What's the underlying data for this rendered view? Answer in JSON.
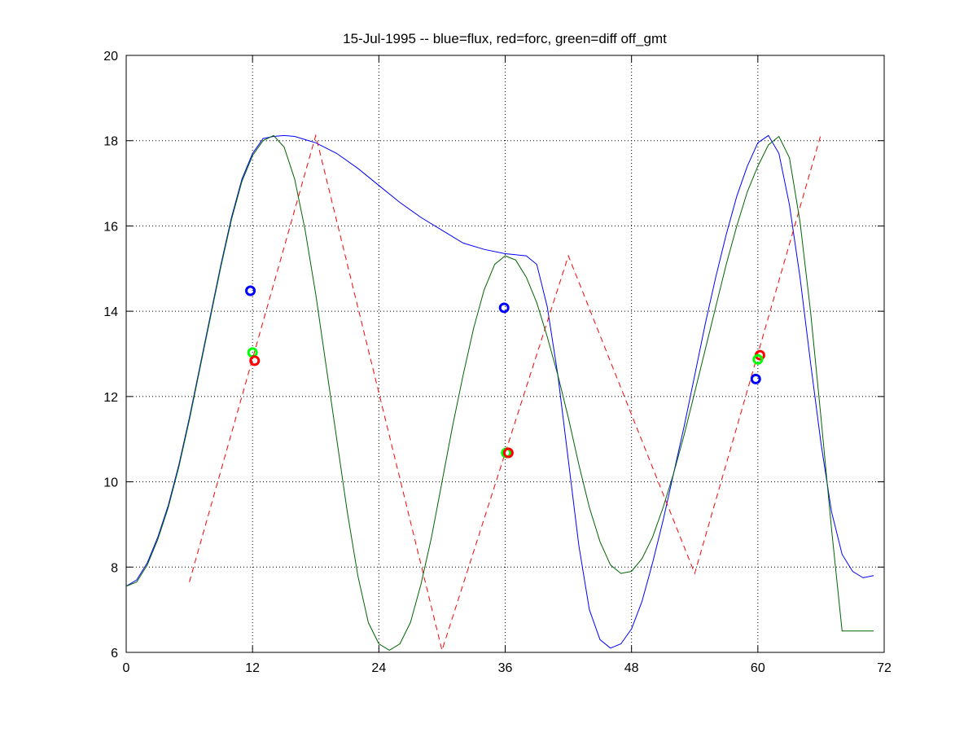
{
  "chart_data": {
    "type": "line",
    "title": "15-Jul-1995 -- blue=flux, red=forc, green=diff off_gmt",
    "xlabel": "",
    "ylabel": "",
    "xlim": [
      0,
      72
    ],
    "ylim": [
      6,
      20
    ],
    "xticks": [
      0,
      12,
      24,
      36,
      48,
      60,
      72
    ],
    "yticks": [
      6,
      8,
      10,
      12,
      14,
      16,
      18,
      20
    ],
    "xtick_labels": [
      "0",
      "12",
      "24",
      "36",
      "48",
      "60",
      "72"
    ],
    "ytick_labels": [
      "6",
      "8",
      "10",
      "12",
      "14",
      "16",
      "18",
      "20"
    ],
    "grid": true,
    "legend": "none",
    "series": [
      {
        "color": "#0000ff",
        "style": "solid",
        "x": [
          0,
          1,
          2,
          3,
          4,
          5,
          6,
          7,
          8,
          9,
          10,
          11,
          12,
          13,
          14,
          15,
          16,
          18,
          20,
          22,
          24,
          26,
          28,
          30,
          32,
          34,
          36,
          38,
          39,
          40,
          41,
          42,
          43,
          44,
          45,
          46,
          47,
          48,
          49,
          50,
          51,
          52,
          53,
          54,
          55,
          56,
          57,
          58,
          59,
          60,
          61,
          62,
          63,
          64,
          65,
          66,
          67,
          68,
          69,
          70,
          71
        ],
        "y": [
          7.55,
          7.7,
          8.1,
          8.7,
          9.45,
          10.4,
          11.5,
          12.7,
          13.9,
          15.1,
          16.2,
          17.1,
          17.7,
          18.05,
          18.1,
          18.12,
          18.1,
          17.95,
          17.7,
          17.35,
          16.95,
          16.55,
          16.2,
          15.9,
          15.6,
          15.45,
          15.35,
          15.3,
          15.1,
          14.1,
          12.5,
          10.5,
          8.5,
          7.0,
          6.3,
          6.1,
          6.2,
          6.55,
          7.2,
          8.1,
          9.1,
          10.2,
          11.3,
          12.5,
          13.7,
          14.8,
          15.8,
          16.7,
          17.4,
          17.95,
          18.12,
          17.7,
          16.5,
          14.8,
          12.8,
          10.9,
          9.3,
          8.3,
          7.9,
          7.75,
          7.8
        ]
      },
      {
        "color": "#ff0000",
        "style": "dashed",
        "x": [
          6,
          18,
          30,
          42,
          54,
          66
        ],
        "y": [
          7.65,
          18.12,
          6.05,
          15.3,
          7.85,
          18.15
        ]
      },
      {
        "color": "#006400",
        "style": "solid",
        "x": [
          0,
          1,
          2,
          3,
          4,
          5,
          6,
          7,
          8,
          9,
          10,
          11,
          12,
          13,
          14,
          15,
          16,
          17,
          18,
          19,
          20,
          21,
          22,
          23,
          24,
          25,
          26,
          27,
          28,
          29,
          30,
          31,
          32,
          33,
          34,
          35,
          36,
          37,
          38,
          39,
          40,
          41,
          42,
          43,
          44,
          45,
          46,
          47,
          48,
          49,
          50,
          51,
          52,
          53,
          54,
          55,
          56,
          57,
          58,
          59,
          60,
          61,
          62,
          63,
          64,
          65,
          66,
          67,
          68,
          69,
          70,
          71
        ],
        "y": [
          7.55,
          7.65,
          8.05,
          8.65,
          9.4,
          10.35,
          11.45,
          12.65,
          13.85,
          15.05,
          16.15,
          17.05,
          17.65,
          18.0,
          18.12,
          17.85,
          17.1,
          15.9,
          14.4,
          12.7,
          11.0,
          9.3,
          7.8,
          6.7,
          6.2,
          6.05,
          6.2,
          6.7,
          7.6,
          8.7,
          10.0,
          11.3,
          12.5,
          13.6,
          14.5,
          15.1,
          15.3,
          15.2,
          14.8,
          14.2,
          13.4,
          12.5,
          11.5,
          10.4,
          9.4,
          8.6,
          8.05,
          7.85,
          7.9,
          8.2,
          8.7,
          9.4,
          10.2,
          11.1,
          12.1,
          13.1,
          14.1,
          15.1,
          16.0,
          16.8,
          17.4,
          17.9,
          18.1,
          17.6,
          16.1,
          14.0,
          11.5,
          8.9,
          6.5,
          6.5,
          6.5,
          6.5
        ],
        "x_note_unused": null
      }
    ],
    "markers": [
      {
        "color": "#0000ff",
        "x": 11.8,
        "y": 14.48
      },
      {
        "color": "#00ff00",
        "x": 12.0,
        "y": 13.03
      },
      {
        "color": "#ff0000",
        "x": 12.2,
        "y": 12.84
      },
      {
        "color": "#0000ff",
        "x": 35.9,
        "y": 14.08
      },
      {
        "color": "#00ff00",
        "x": 36.1,
        "y": 10.68
      },
      {
        "color": "#ff0000",
        "x": 36.3,
        "y": 10.68
      },
      {
        "color": "#0000ff",
        "x": 59.8,
        "y": 12.41
      },
      {
        "color": "#ff0000",
        "x": 60.2,
        "y": 12.97
      },
      {
        "color": "#00ff00",
        "x": 60.0,
        "y": 12.87
      }
    ]
  }
}
